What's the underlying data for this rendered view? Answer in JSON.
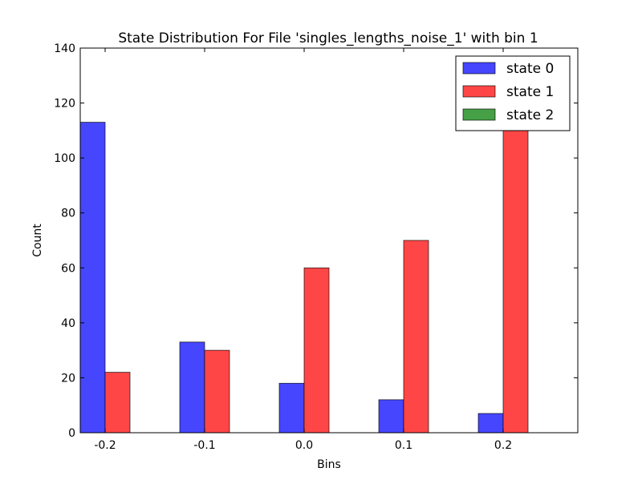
{
  "chart_data": {
    "type": "bar",
    "title": "State Distribution For File 'singles_lengths_noise_1' with bin 1",
    "xlabel": "Bins",
    "ylabel": "Count",
    "categories": [
      "-0.2",
      "-0.1",
      "0.0",
      "0.1",
      "0.2"
    ],
    "ylim": [
      0,
      140
    ],
    "yticks": [
      "0",
      "20",
      "40",
      "60",
      "80",
      "100",
      "120",
      "140"
    ],
    "series": [
      {
        "name": "state 0",
        "color": "#4646ff",
        "values": [
          113,
          33,
          18,
          12,
          7
        ]
      },
      {
        "name": "state 1",
        "color": "#ff4646",
        "values": [
          22,
          30,
          60,
          70,
          111
        ]
      },
      {
        "name": "state 2",
        "color": "#46a046",
        "values": [
          0,
          0,
          0,
          0,
          0
        ]
      }
    ],
    "legend_position": "top-right",
    "grid": false
  }
}
